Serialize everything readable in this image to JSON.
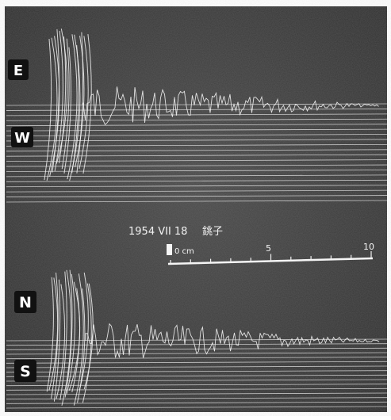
{
  "labels": {
    "ew_east": "E",
    "ew_west": "W",
    "ns_north": "N",
    "ns_south": "S"
  },
  "caption": {
    "date": "1954 VII 18",
    "station": "銚子"
  },
  "scale_bar": {
    "unit_label": "0 cm",
    "tick_5": "5",
    "tick_10": "10"
  },
  "colors": {
    "background": "#3a3a3a",
    "trace": "#f2f2f2",
    "label_bg": "#111111",
    "label_fg": "#ffffff"
  }
}
